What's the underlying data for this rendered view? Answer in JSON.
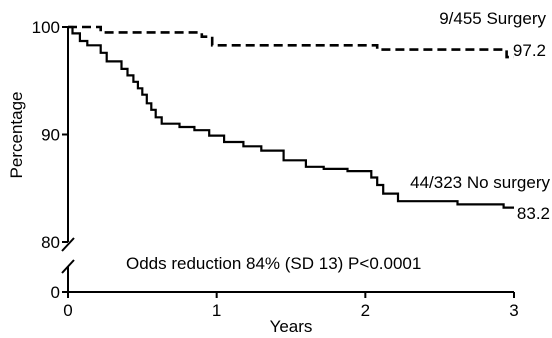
{
  "chart_data": {
    "type": "line",
    "xlabel": "Years",
    "ylabel": "Percentage",
    "xlim": [
      0,
      3
    ],
    "ylim": [
      80,
      100
    ],
    "x_ticks": [
      "0",
      "1",
      "2",
      "3"
    ],
    "y_ticks": [
      "0",
      "80",
      "90",
      "100"
    ],
    "axis_break": true,
    "grid": false,
    "annotation": "Odds reduction 84% (SD 13) P<0.0001",
    "series": [
      {
        "name": "Surgery",
        "label": "9/455 Surgery",
        "end_label": "97.2",
        "style": "dashed",
        "color": "#000000",
        "points": [
          [
            0,
            100
          ],
          [
            0.22,
            100
          ],
          [
            0.22,
            99.5
          ],
          [
            0.9,
            99.5
          ],
          [
            0.9,
            99.1
          ],
          [
            0.97,
            99.1
          ],
          [
            0.97,
            98.3
          ],
          [
            2.08,
            98.3
          ],
          [
            2.08,
            97.9
          ],
          [
            2.95,
            97.9
          ],
          [
            2.95,
            97.2
          ],
          [
            3.0,
            97.2
          ]
        ]
      },
      {
        "name": "No surgery",
        "label": "44/323 No surgery",
        "end_label": "83.2",
        "style": "solid",
        "color": "#000000",
        "points": [
          [
            0,
            100
          ],
          [
            0.03,
            100
          ],
          [
            0.03,
            99.4
          ],
          [
            0.08,
            99.4
          ],
          [
            0.08,
            98.7
          ],
          [
            0.13,
            98.7
          ],
          [
            0.13,
            98.3
          ],
          [
            0.22,
            98.3
          ],
          [
            0.22,
            97.6
          ],
          [
            0.26,
            97.6
          ],
          [
            0.26,
            96.8
          ],
          [
            0.36,
            96.8
          ],
          [
            0.36,
            96.1
          ],
          [
            0.4,
            96.1
          ],
          [
            0.4,
            95.5
          ],
          [
            0.44,
            95.5
          ],
          [
            0.44,
            94.9
          ],
          [
            0.47,
            94.9
          ],
          [
            0.47,
            94.3
          ],
          [
            0.5,
            94.3
          ],
          [
            0.5,
            93.7
          ],
          [
            0.53,
            93.7
          ],
          [
            0.53,
            92.9
          ],
          [
            0.56,
            92.9
          ],
          [
            0.56,
            92.3
          ],
          [
            0.59,
            92.3
          ],
          [
            0.59,
            91.6
          ],
          [
            0.63,
            91.6
          ],
          [
            0.63,
            91.0
          ],
          [
            0.75,
            91.0
          ],
          [
            0.75,
            90.7
          ],
          [
            0.85,
            90.7
          ],
          [
            0.85,
            90.4
          ],
          [
            0.95,
            90.4
          ],
          [
            0.95,
            89.9
          ],
          [
            1.05,
            89.9
          ],
          [
            1.05,
            89.3
          ],
          [
            1.18,
            89.3
          ],
          [
            1.18,
            88.9
          ],
          [
            1.3,
            88.9
          ],
          [
            1.3,
            88.5
          ],
          [
            1.45,
            88.5
          ],
          [
            1.45,
            87.6
          ],
          [
            1.6,
            87.6
          ],
          [
            1.6,
            87.0
          ],
          [
            1.72,
            87.0
          ],
          [
            1.72,
            86.8
          ],
          [
            1.88,
            86.8
          ],
          [
            1.88,
            86.6
          ],
          [
            2.04,
            86.6
          ],
          [
            2.04,
            86.0
          ],
          [
            2.08,
            86.0
          ],
          [
            2.08,
            85.3
          ],
          [
            2.12,
            85.3
          ],
          [
            2.12,
            84.5
          ],
          [
            2.22,
            84.5
          ],
          [
            2.22,
            83.8
          ],
          [
            2.35,
            83.8
          ],
          [
            2.35,
            83.8
          ],
          [
            2.62,
            83.8
          ],
          [
            2.62,
            83.5
          ],
          [
            2.93,
            83.5
          ],
          [
            2.93,
            83.2
          ],
          [
            3.0,
            83.2
          ]
        ]
      }
    ]
  }
}
